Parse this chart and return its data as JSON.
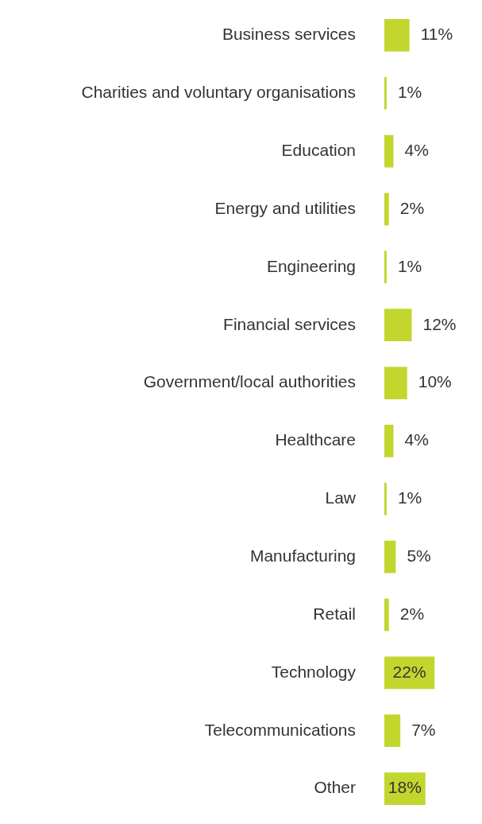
{
  "chart_data": {
    "type": "bar",
    "orientation": "horizontal",
    "categories": [
      "Business services",
      "Charities and voluntary organisations",
      "Education",
      "Energy and utilities",
      "Engineering",
      "Financial services",
      "Government/local authorities",
      "Healthcare",
      "Law",
      "Manufacturing",
      "Retail",
      "Technology",
      "Telecommunications",
      "Other"
    ],
    "values": [
      11,
      1,
      4,
      2,
      1,
      12,
      10,
      4,
      1,
      5,
      2,
      22,
      7,
      18
    ],
    "value_labels": [
      "11%",
      "1%",
      "4%",
      "2%",
      "1%",
      "12%",
      "10%",
      "4%",
      "1%",
      "5%",
      "2%",
      "22%",
      "7%",
      "18%"
    ],
    "color": "#c2d62e",
    "legend": false,
    "grid": false
  }
}
